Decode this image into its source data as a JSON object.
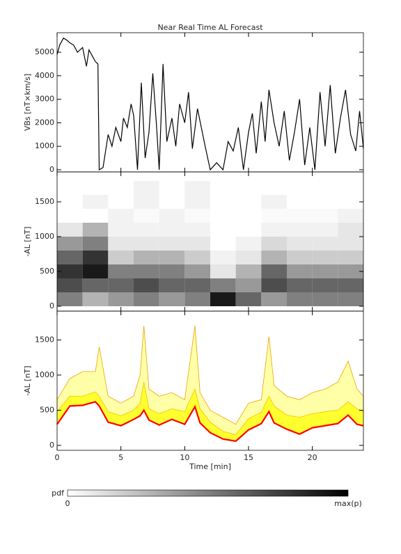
{
  "chart_data": [
    {
      "type": "line",
      "title": "Near Real Time AL Forecast",
      "ylabel": "VBs [nT×km/s]",
      "color": "#000000",
      "x": [
        0,
        0.2,
        0.5,
        0.8,
        1,
        1.3,
        1.6,
        2,
        2.3,
        2.5,
        2.8,
        3,
        3.2,
        3.3,
        3.6,
        4,
        4.3,
        4.6,
        5,
        5.2,
        5.5,
        5.8,
        6,
        6.3,
        6.6,
        6.9,
        7.2,
        7.5,
        7.8,
        8,
        8.3,
        8.6,
        9,
        9.3,
        9.6,
        10,
        10.3,
        10.6,
        11,
        11.3,
        11.6,
        12,
        12.5,
        13,
        13.4,
        13.8,
        14.2,
        14.6,
        15,
        15.3,
        15.6,
        16,
        16.3,
        16.6,
        17,
        17.4,
        17.8,
        18.2,
        18.6,
        19,
        19.4,
        19.8,
        20.2,
        20.6,
        21,
        21.4,
        21.8,
        22.2,
        22.6,
        23,
        23.4,
        23.7,
        24
      ],
      "values": [
        4900,
        5300,
        5600,
        5500,
        5400,
        5300,
        5000,
        5200,
        4400,
        5100,
        4800,
        4600,
        4500,
        0,
        100,
        1500,
        1000,
        1800,
        1200,
        2200,
        1800,
        2800,
        2300,
        0,
        3700,
        500,
        1600,
        4100,
        1800,
        0,
        4500,
        1200,
        2200,
        1000,
        2800,
        2000,
        3300,
        900,
        2600,
        1800,
        1000,
        0,
        300,
        0,
        1200,
        800,
        1800,
        0,
        1600,
        2400,
        700,
        2900,
        1200,
        3400,
        2000,
        1000,
        2500,
        400,
        1600,
        3000,
        200,
        1800,
        0,
        3300,
        1000,
        3600,
        700,
        2200,
        3400,
        1500,
        800,
        2500,
        900
      ],
      "xlim": [
        0,
        24
      ],
      "xticks": [
        0,
        5,
        10,
        15,
        20
      ],
      "ylim": [
        -90,
        5830
      ],
      "yticks": [
        0,
        1000,
        2000,
        3000,
        4000,
        5000
      ]
    },
    {
      "type": "heatmap",
      "ylabel": "-AL [nT]",
      "x_bins": [
        0,
        2,
        4,
        6,
        8,
        10,
        12,
        14,
        16,
        18,
        20,
        22,
        24
      ],
      "y_bins": [
        0,
        200,
        400,
        600,
        800,
        1000,
        1200,
        1400,
        1600,
        1800
      ],
      "values": [
        [
          0.5,
          0.3,
          0.4,
          0.5,
          0.4,
          0.5,
          0.9,
          0.6,
          0.4,
          0.5,
          0.5,
          0.5
        ],
        [
          0.7,
          0.6,
          0.6,
          0.7,
          0.6,
          0.6,
          0.5,
          0.4,
          0.7,
          0.6,
          0.6,
          0.6
        ],
        [
          0.8,
          0.9,
          0.5,
          0.5,
          0.5,
          0.4,
          0.1,
          0.3,
          0.6,
          0.4,
          0.4,
          0.4
        ],
        [
          0.6,
          0.8,
          0.2,
          0.3,
          0.3,
          0.2,
          0.05,
          0.1,
          0.3,
          0.2,
          0.2,
          0.2
        ],
        [
          0.4,
          0.5,
          0.1,
          0.1,
          0.1,
          0.1,
          0,
          0.05,
          0.15,
          0.1,
          0.1,
          0.1
        ],
        [
          0.1,
          0.3,
          0.05,
          0.05,
          0.05,
          0.05,
          0,
          0,
          0.05,
          0.05,
          0.05,
          0.1
        ],
        [
          0,
          0,
          0.05,
          0.02,
          0.05,
          0.02,
          0,
          0,
          0.02,
          0.02,
          0.02,
          0.05
        ],
        [
          0,
          0.05,
          0,
          0.05,
          0,
          0.05,
          0,
          0,
          0.05,
          0,
          0,
          0
        ],
        [
          0,
          0,
          0,
          0.05,
          0,
          0.05,
          0,
          0,
          0,
          0,
          0,
          0
        ]
      ],
      "xlim": [
        0,
        24
      ],
      "xticks": [
        0,
        5,
        10,
        15,
        20
      ],
      "ylim": [
        -70,
        1930
      ],
      "yticks": [
        0,
        500,
        1000,
        1500
      ]
    },
    {
      "type": "band",
      "ylabel": "-AL [nT]",
      "xlabel": "Time [min]",
      "x": [
        0,
        1,
        2,
        3,
        3.3,
        4,
        5,
        6,
        6.5,
        6.8,
        7.2,
        8,
        9,
        10,
        10.8,
        11.2,
        12,
        13,
        14,
        15,
        16,
        16.6,
        17,
        18,
        19,
        20,
        21,
        22,
        22.8,
        23.5,
        24
      ],
      "series": [
        {
          "color": "#ffffa8",
          "line_color": "#f0a000",
          "values": [
            650,
            950,
            1050,
            1050,
            1400,
            700,
            600,
            700,
            1000,
            1700,
            800,
            700,
            750,
            650,
            1700,
            750,
            500,
            400,
            300,
            600,
            650,
            1550,
            850,
            700,
            650,
            750,
            800,
            900,
            1200,
            800,
            700
          ]
        },
        {
          "color": "#ffff30",
          "line_color": "#f0c000",
          "values": [
            480,
            700,
            700,
            760,
            700,
            480,
            420,
            500,
            600,
            900,
            520,
            450,
            520,
            480,
            800,
            520,
            330,
            200,
            150,
            380,
            470,
            700,
            560,
            430,
            400,
            450,
            480,
            500,
            620,
            520,
            480
          ]
        },
        {
          "color": "#ff0000",
          "values": [
            300,
            560,
            570,
            620,
            560,
            330,
            280,
            370,
            420,
            500,
            360,
            290,
            370,
            300,
            550,
            320,
            180,
            90,
            60,
            220,
            310,
            480,
            320,
            230,
            160,
            250,
            280,
            310,
            430,
            300,
            280
          ]
        }
      ],
      "xlim": [
        0,
        24
      ],
      "xticks": [
        0,
        5,
        10,
        15,
        20
      ],
      "ylim": [
        -70,
        1910
      ],
      "yticks": [
        0,
        500,
        1000,
        1500
      ]
    }
  ],
  "colorbar": {
    "label": "pdf",
    "min_label": "0",
    "max_label": "max(p)"
  }
}
